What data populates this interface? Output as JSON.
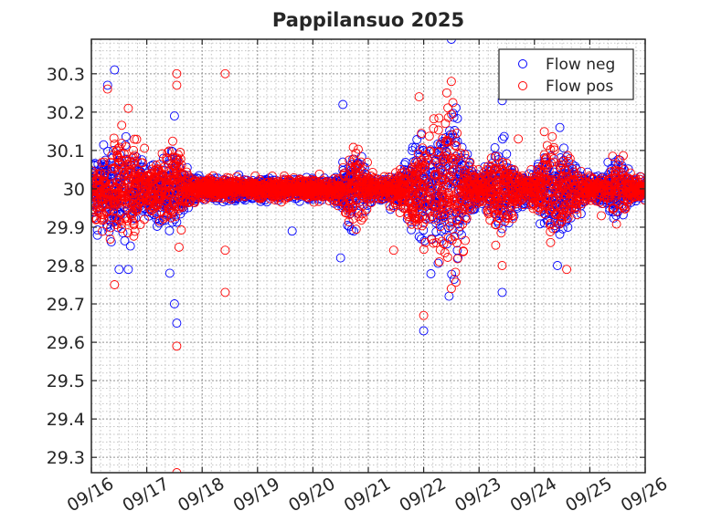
{
  "chart_data": {
    "type": "scatter",
    "title": "Pappilansuo 2025",
    "xlabel": "",
    "ylabel": "",
    "x_ticks": [
      "09/16",
      "09/17",
      "09/18",
      "09/19",
      "09/20",
      "09/21",
      "09/22",
      "09/23",
      "09/24",
      "09/25",
      "09/26"
    ],
    "y_ticks": [
      "29.3",
      "29.4",
      "29.5",
      "29.6",
      "29.7",
      "29.8",
      "29.9",
      "30",
      "30.1",
      "30.2",
      "30.3"
    ],
    "xlim": [
      "2025-09-16",
      "2025-09-26"
    ],
    "ylim": [
      29.26,
      30.39
    ],
    "grid": true,
    "minor_grid": true,
    "legend": "top-right",
    "series": [
      {
        "name": "Flow neg",
        "color": "#0000ff",
        "marker": "circle-open",
        "mean": 30.0,
        "points": [
          [
            "2025-09-16 07:00",
            30.27
          ],
          [
            "2025-09-16 10:00",
            30.31
          ],
          [
            "2025-09-16 12:00",
            29.79
          ],
          [
            "2025-09-16 16:00",
            29.79
          ],
          [
            "2025-09-17 10:00",
            29.78
          ],
          [
            "2025-09-17 12:00",
            29.7
          ],
          [
            "2025-09-17 13:00",
            29.65
          ],
          [
            "2025-09-17 12:00",
            30.19
          ],
          [
            "2025-09-20 13:00",
            30.22
          ],
          [
            "2025-09-20 12:00",
            29.82
          ],
          [
            "2025-09-19 15:00",
            29.89
          ],
          [
            "2025-09-22 00:00",
            29.63
          ],
          [
            "2025-09-22 11:00",
            29.72
          ],
          [
            "2025-09-22 12:00",
            30.39
          ],
          [
            "2025-09-23 10:00",
            30.23
          ],
          [
            "2025-09-23 10:00",
            29.73
          ],
          [
            "2025-09-24 11:00",
            30.16
          ],
          [
            "2025-09-24 10:00",
            29.8
          ],
          [
            "2025-09-25 11:00",
            30.07
          ],
          [
            "2025-09-25 10:00",
            29.94
          ]
        ]
      },
      {
        "name": "Flow pos",
        "color": "#ff0000",
        "marker": "circle-open",
        "mean": 30.0,
        "points": [
          [
            "2025-09-16 07:00",
            30.26
          ],
          [
            "2025-09-16 10:00",
            29.75
          ],
          [
            "2025-09-16 16:00",
            30.21
          ],
          [
            "2025-09-17 13:00",
            30.3
          ],
          [
            "2025-09-17 13:00",
            30.27
          ],
          [
            "2025-09-17 13:00",
            29.59
          ],
          [
            "2025-09-17 13:00",
            29.26
          ],
          [
            "2025-09-18 10:00",
            30.3
          ],
          [
            "2025-09-18 10:00",
            29.73
          ],
          [
            "2025-09-18 10:00",
            29.84
          ],
          [
            "2025-09-21 11:00",
            29.84
          ],
          [
            "2025-09-22 00:00",
            29.67
          ],
          [
            "2025-09-21 22:00",
            30.24
          ],
          [
            "2025-09-22 10:00",
            30.25
          ],
          [
            "2025-09-22 12:00",
            30.28
          ],
          [
            "2025-09-22 12:00",
            29.74
          ],
          [
            "2025-09-23 10:00",
            29.8
          ],
          [
            "2025-09-23 17:00",
            30.13
          ],
          [
            "2025-09-24 07:00",
            29.86
          ],
          [
            "2025-09-24 14:00",
            29.79
          ],
          [
            "2025-09-25 05:00",
            29.93
          ]
        ]
      }
    ]
  }
}
